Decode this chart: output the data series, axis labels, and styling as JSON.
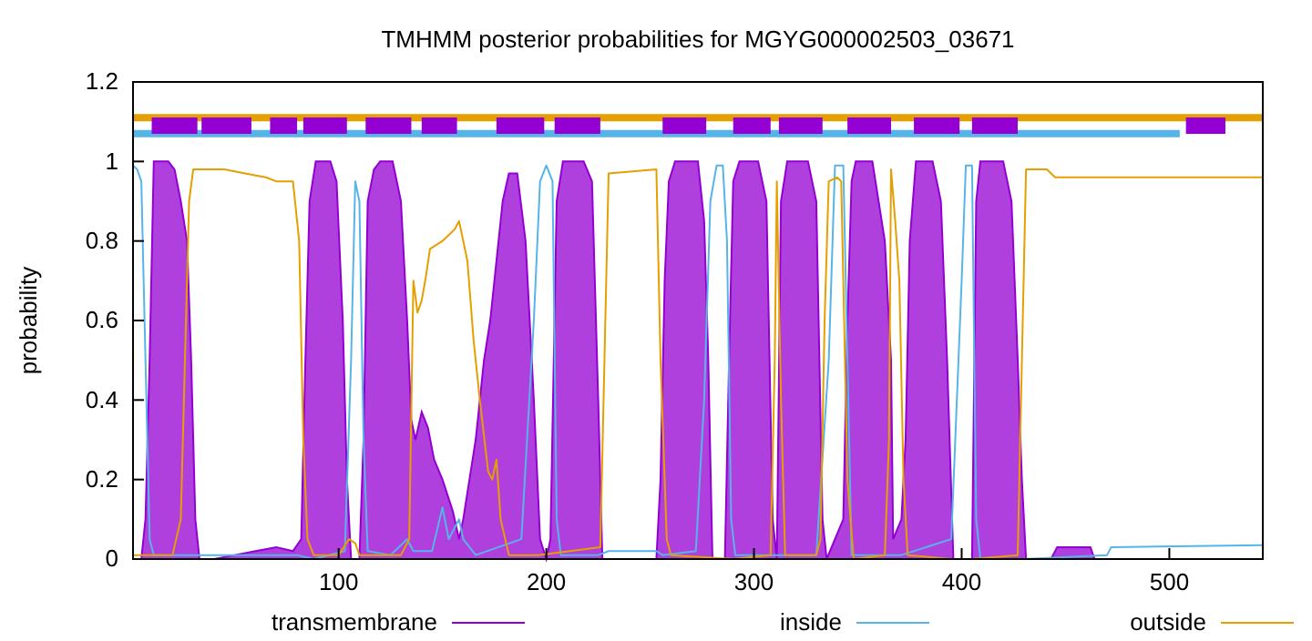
{
  "chart_data": {
    "type": "line",
    "title": "TMHMM posterior probabilities for MGYG000002503_03671",
    "ylabel": "probability",
    "xlim": [
      1,
      545
    ],
    "ylim": [
      0,
      1.2
    ],
    "xticks": [
      100,
      200,
      300,
      400,
      500
    ],
    "yticks": [
      0,
      0.2,
      0.4,
      0.6,
      0.8,
      1,
      1.2
    ],
    "grid": false,
    "legend": "bottom",
    "series": [
      {
        "name": "transmembrane",
        "type": "area",
        "color": "#9400d3",
        "x": [
          1,
          5,
          7,
          9,
          11,
          18,
          21,
          24,
          27,
          29,
          31,
          33,
          40,
          50,
          60,
          70,
          78,
          82,
          84,
          86,
          89,
          96,
          99,
          102,
          104,
          106,
          110,
          112,
          114,
          117,
          120,
          126,
          130,
          133,
          135,
          137,
          140,
          143,
          146,
          150,
          155,
          158,
          160,
          163,
          166,
          170,
          173,
          176,
          179,
          182,
          186,
          190,
          194,
          197,
          200,
          202,
          205,
          208,
          218,
          222,
          225,
          227,
          253,
          255,
          257,
          259,
          262,
          273,
          276,
          278,
          280,
          286,
          288,
          290,
          293,
          302,
          306,
          309,
          311,
          313,
          316,
          326,
          330,
          333,
          335,
          343,
          345,
          347,
          349,
          357,
          360,
          363,
          366,
          367,
          371,
          373,
          375,
          378,
          386,
          390,
          393,
          396,
          405,
          407,
          409,
          420,
          424,
          427,
          429,
          431,
          443,
          446,
          462,
          464,
          545
        ],
        "values": [
          0,
          0,
          0.1,
          0.5,
          1,
          1,
          0.98,
          0.9,
          0.8,
          0.5,
          0.1,
          0,
          0,
          0.01,
          0.02,
          0.03,
          0.02,
          0.05,
          0.5,
          0.9,
          1,
          1,
          0.95,
          0.6,
          0.2,
          0,
          0,
          0.3,
          0.9,
          0.98,
          1,
          1,
          0.9,
          0.6,
          0.35,
          0.3,
          0.37,
          0.33,
          0.25,
          0.2,
          0.12,
          0.05,
          0.1,
          0.2,
          0.3,
          0.5,
          0.6,
          0.75,
          0.9,
          0.97,
          0.97,
          0.8,
          0.4,
          0.05,
          0,
          0.05,
          0.9,
          1,
          1,
          0.95,
          0.4,
          0,
          0,
          0.2,
          0.7,
          0.95,
          1,
          1,
          0.85,
          0.5,
          0,
          0,
          0.5,
          0.95,
          1,
          1,
          0.9,
          0.1,
          0,
          0.9,
          1,
          1,
          0.9,
          0.1,
          0,
          0.1,
          0.6,
          0.95,
          1,
          1,
          0.9,
          0.8,
          0.5,
          0.05,
          0.1,
          0.3,
          0.8,
          1,
          1,
          0.9,
          0.5,
          0,
          0,
          0.9,
          1,
          1,
          0.9,
          0.5,
          0.2,
          0,
          0,
          0.03,
          0.03,
          0,
          0
        ]
      },
      {
        "name": "inside",
        "color": "#56b4e9",
        "x": [
          1,
          3,
          5,
          7,
          9,
          11,
          30,
          60,
          80,
          88,
          103,
          106,
          108,
          110,
          112,
          114,
          125,
          133,
          136,
          145,
          150,
          153,
          158,
          160,
          166,
          188,
          194,
          197,
          200,
          203,
          205,
          207,
          225,
          230,
          253,
          256,
          272,
          276,
          279,
          282,
          285,
          287,
          289,
          291,
          330,
          336,
          339,
          343,
          345,
          347,
          368,
          371,
          395,
          400,
          402,
          405,
          407,
          409,
          430,
          470,
          472,
          545
        ],
        "values": [
          0.99,
          0.98,
          0.95,
          0.5,
          0.05,
          0.01,
          0.01,
          0.01,
          0.01,
          0,
          0.02,
          0.5,
          0.95,
          0.9,
          0.3,
          0.02,
          0.01,
          0.05,
          0.02,
          0.02,
          0.13,
          0.05,
          0.1,
          0.05,
          0.01,
          0.05,
          0.6,
          0.95,
          0.99,
          0.95,
          0.1,
          0.01,
          0.01,
          0.02,
          0.02,
          0.01,
          0.02,
          0.4,
          0.9,
          0.99,
          0.99,
          0.8,
          0.1,
          0.01,
          0.01,
          0.5,
          0.99,
          0.99,
          0.5,
          0.01,
          0.01,
          0.01,
          0.05,
          0.7,
          0.99,
          0.99,
          0.1,
          0,
          0,
          0.01,
          0.03,
          0.035
        ]
      },
      {
        "name": "outside",
        "color": "#e69f00",
        "x": [
          1,
          20,
          24,
          26,
          28,
          30,
          45,
          55,
          65,
          70,
          78,
          81,
          83,
          85,
          88,
          100,
          105,
          108,
          110,
          130,
          134,
          136,
          138,
          140,
          142,
          144,
          150,
          156,
          158,
          162,
          165,
          168,
          172,
          174,
          176,
          178,
          182,
          196,
          226,
          228,
          230,
          253,
          255,
          258,
          260,
          290,
          308,
          310,
          311,
          313,
          315,
          330,
          332,
          334,
          336,
          340,
          342,
          345,
          348,
          363,
          365,
          366,
          368,
          370,
          372,
          374,
          395,
          405,
          427,
          429,
          431,
          441,
          445,
          470,
          545
        ],
        "values": [
          0.01,
          0.01,
          0.1,
          0.5,
          0.9,
          0.98,
          0.98,
          0.97,
          0.96,
          0.95,
          0.95,
          0.8,
          0.3,
          0.05,
          0.01,
          0.01,
          0.05,
          0.04,
          0.01,
          0.01,
          0.05,
          0.7,
          0.62,
          0.65,
          0.71,
          0.78,
          0.8,
          0.83,
          0.85,
          0.75,
          0.55,
          0.4,
          0.22,
          0.2,
          0.25,
          0.1,
          0.01,
          0.01,
          0.03,
          0.5,
          0.97,
          0.98,
          0.5,
          0.05,
          0.01,
          0,
          0.01,
          0.5,
          0.95,
          0.4,
          0.01,
          0.01,
          0.05,
          0.6,
          0.95,
          0.96,
          0.95,
          0.2,
          0,
          0.01,
          0.3,
          0.98,
          0.85,
          0.7,
          0.2,
          0.01,
          0,
          0,
          0.01,
          0.5,
          0.98,
          0.98,
          0.96,
          0.96,
          0.96
        ]
      },
      {
        "color": "#e69f00",
        "x": [
          1,
          545
        ],
        "values": [
          1.11,
          1.11
        ]
      },
      {
        "color": "#56b4e9",
        "x": [
          1,
          505
        ],
        "values": [
          1.07,
          1.07
        ]
      },
      {
        "color": "#9400d3",
        "x": [
          10,
          32,
          null,
          34,
          58,
          null,
          67,
          80,
          null,
          83,
          104,
          null,
          113,
          135,
          null,
          140,
          157,
          null,
          176,
          199,
          null,
          204,
          226,
          null,
          256,
          277,
          null,
          290,
          308,
          null,
          312,
          333,
          null,
          345,
          366,
          null,
          377,
          399,
          null,
          405,
          427,
          null,
          508,
          527
        ],
        "values": [
          1.09,
          1.09,
          null,
          1.09,
          1.09,
          null,
          1.09,
          1.09,
          null,
          1.09,
          1.09,
          null,
          1.09,
          1.09,
          null,
          1.09,
          1.09,
          null,
          1.09,
          1.09,
          null,
          1.09,
          1.09,
          null,
          1.09,
          1.09,
          null,
          1.09,
          1.09,
          null,
          1.09,
          1.09,
          null,
          1.09,
          1.09,
          null,
          1.09,
          1.09,
          null,
          1.09,
          1.09,
          null,
          1.09,
          1.09
        ]
      }
    ]
  }
}
